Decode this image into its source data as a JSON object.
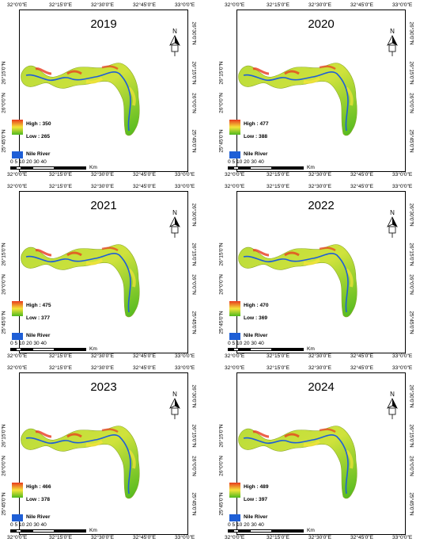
{
  "panels": [
    {
      "year": "2019",
      "high": "High : 350",
      "low": "Low : 265"
    },
    {
      "year": "2020",
      "high": "High : 477",
      "low": "Low : 388"
    },
    {
      "year": "2021",
      "high": "High : 475",
      "low": "Low : 377"
    },
    {
      "year": "2022",
      "high": "High : 470",
      "low": "Low : 369"
    },
    {
      "year": "2023",
      "high": "High : 466",
      "low": "Low : 378"
    },
    {
      "year": "2024",
      "high": "High : 489",
      "low": "Low : 397"
    }
  ],
  "lon_ticks": [
    "32°0'0\"E",
    "32°15'0\"E",
    "32°30'0\"E",
    "32°45'0\"E",
    "33°0'0\"E"
  ],
  "lat_ticks": [
    "26°15'0\"N",
    "26°0'0\"N",
    "25°45'0\"N"
  ],
  "lat_ticks_right": [
    "26°30'0\"N",
    "26°15'0\"N",
    "26°0'0\"N",
    "25°45'0\"N"
  ],
  "river_label": "Nile River",
  "scale_label": "0 5 10   20   30   40",
  "scale_unit": "Km",
  "north_label": "N",
  "colors": {
    "high": "#e83a1e",
    "mid": "#f4e43a",
    "low": "#4db81e",
    "river": "#1f5fd6",
    "land": "#b9dc3a"
  }
}
